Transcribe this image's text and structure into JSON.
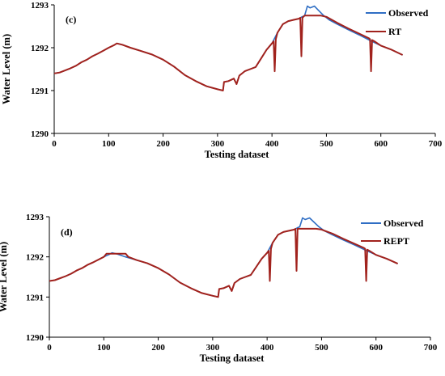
{
  "colors": {
    "observed": "#2f6ec4",
    "model": "#a1221d",
    "axis": "#000000"
  },
  "chart_data": [
    {
      "type": "line",
      "panel_label": "(c)",
      "xlabel": "Testing dataset",
      "ylabel": "Water Level (m)",
      "xlim": [
        0,
        700
      ],
      "ylim": [
        1290,
        1293
      ],
      "xticks": [
        0,
        100,
        200,
        300,
        400,
        500,
        600,
        700
      ],
      "yticks": [
        1290,
        1291,
        1292,
        1293
      ],
      "grid": false,
      "legend_position": "top-right",
      "series": [
        {
          "name": "Observed",
          "color": "#2f6ec4",
          "x": [
            0,
            10,
            20,
            30,
            40,
            50,
            60,
            70,
            80,
            90,
            100,
            110,
            115,
            125,
            140,
            160,
            180,
            200,
            220,
            240,
            260,
            280,
            300,
            310,
            312,
            320,
            330,
            335,
            340,
            350,
            360,
            370,
            380,
            390,
            400,
            410,
            420,
            430,
            440,
            450,
            455,
            460,
            465,
            470,
            478,
            485,
            495,
            505,
            520,
            540,
            560,
            580,
            600,
            620,
            640
          ],
          "y": [
            1291.4,
            1291.42,
            1291.47,
            1291.52,
            1291.58,
            1291.66,
            1291.72,
            1291.8,
            1291.86,
            1291.93,
            1292.0,
            1292.06,
            1292.1,
            1292.07,
            1292.0,
            1291.92,
            1291.84,
            1291.72,
            1291.56,
            1291.36,
            1291.22,
            1291.1,
            1291.03,
            1291.0,
            1291.2,
            1291.22,
            1291.28,
            1291.15,
            1291.35,
            1291.45,
            1291.5,
            1291.55,
            1291.75,
            1291.95,
            1292.1,
            1292.35,
            1292.55,
            1292.62,
            1292.65,
            1292.68,
            1292.72,
            1292.75,
            1292.97,
            1292.93,
            1292.97,
            1292.88,
            1292.75,
            1292.65,
            1292.55,
            1292.42,
            1292.3,
            1292.17,
            1292.05,
            1291.95,
            1291.83
          ]
        },
        {
          "name": "RT",
          "color": "#a1221d",
          "x": [
            0,
            10,
            20,
            30,
            40,
            50,
            60,
            70,
            80,
            90,
            100,
            110,
            115,
            125,
            140,
            160,
            180,
            200,
            220,
            240,
            260,
            280,
            300,
            310,
            312,
            320,
            330,
            335,
            340,
            350,
            360,
            370,
            380,
            390,
            400,
            403,
            405,
            407,
            410,
            420,
            430,
            440,
            450,
            452,
            454,
            456,
            460,
            470,
            480,
            490,
            500,
            520,
            540,
            560,
            578,
            580,
            582,
            584,
            588,
            600,
            620,
            640
          ],
          "y": [
            1291.4,
            1291.42,
            1291.47,
            1291.52,
            1291.58,
            1291.66,
            1291.72,
            1291.8,
            1291.86,
            1291.93,
            1292.0,
            1292.06,
            1292.1,
            1292.07,
            1292.0,
            1291.92,
            1291.84,
            1291.72,
            1291.56,
            1291.36,
            1291.22,
            1291.1,
            1291.03,
            1291.0,
            1291.2,
            1291.22,
            1291.28,
            1291.15,
            1291.35,
            1291.45,
            1291.5,
            1291.55,
            1291.75,
            1291.95,
            1292.1,
            1292.15,
            1291.45,
            1292.2,
            1292.35,
            1292.55,
            1292.62,
            1292.65,
            1292.68,
            1292.7,
            1291.8,
            1292.7,
            1292.75,
            1292.75,
            1292.75,
            1292.75,
            1292.72,
            1292.58,
            1292.45,
            1292.33,
            1292.22,
            1292.2,
            1291.45,
            1292.18,
            1292.15,
            1292.05,
            1291.95,
            1291.83
          ]
        }
      ]
    },
    {
      "type": "line",
      "panel_label": "(d)",
      "xlabel": "Testing dataset",
      "ylabel": "Water Level (m)",
      "xlim": [
        0,
        700
      ],
      "ylim": [
        1290,
        1293
      ],
      "xticks": [
        0,
        100,
        200,
        300,
        400,
        500,
        600,
        700
      ],
      "yticks": [
        1290,
        1291,
        1292,
        1293
      ],
      "grid": false,
      "legend_position": "top-right",
      "series": [
        {
          "name": "Observed",
          "color": "#2f6ec4",
          "x": [
            0,
            10,
            20,
            30,
            40,
            50,
            60,
            70,
            80,
            90,
            100,
            110,
            115,
            125,
            140,
            160,
            180,
            200,
            220,
            240,
            260,
            280,
            300,
            310,
            312,
            320,
            330,
            335,
            340,
            350,
            360,
            370,
            380,
            390,
            400,
            410,
            420,
            430,
            440,
            450,
            455,
            460,
            465,
            470,
            478,
            485,
            495,
            505,
            520,
            540,
            560,
            580,
            600,
            620,
            640
          ],
          "y": [
            1291.4,
            1291.42,
            1291.47,
            1291.52,
            1291.58,
            1291.66,
            1291.72,
            1291.8,
            1291.86,
            1291.93,
            1292.0,
            1292.06,
            1292.1,
            1292.07,
            1292.0,
            1291.92,
            1291.84,
            1291.72,
            1291.56,
            1291.36,
            1291.22,
            1291.1,
            1291.03,
            1291.0,
            1291.2,
            1291.22,
            1291.28,
            1291.15,
            1291.35,
            1291.45,
            1291.5,
            1291.55,
            1291.75,
            1291.95,
            1292.1,
            1292.35,
            1292.55,
            1292.62,
            1292.65,
            1292.68,
            1292.72,
            1292.75,
            1292.97,
            1292.93,
            1292.97,
            1292.88,
            1292.75,
            1292.65,
            1292.55,
            1292.42,
            1292.3,
            1292.17,
            1292.05,
            1291.95,
            1291.83
          ]
        },
        {
          "name": "REPT",
          "color": "#a1221d",
          "x": [
            0,
            10,
            20,
            30,
            40,
            50,
            60,
            70,
            80,
            90,
            100,
            105,
            140,
            145,
            160,
            180,
            200,
            220,
            240,
            260,
            280,
            300,
            310,
            312,
            320,
            330,
            335,
            340,
            350,
            360,
            370,
            380,
            390,
            400,
            403,
            405,
            407,
            410,
            420,
            430,
            440,
            450,
            452,
            454,
            456,
            460,
            470,
            480,
            490,
            500,
            520,
            540,
            560,
            578,
            580,
            582,
            584,
            588,
            600,
            620,
            640
          ],
          "y": [
            1291.4,
            1291.42,
            1291.47,
            1291.52,
            1291.58,
            1291.66,
            1291.72,
            1291.8,
            1291.86,
            1291.93,
            1292.0,
            1292.08,
            1292.08,
            1292.0,
            1291.92,
            1291.84,
            1291.72,
            1291.56,
            1291.36,
            1291.22,
            1291.1,
            1291.03,
            1291.0,
            1291.2,
            1291.22,
            1291.28,
            1291.15,
            1291.35,
            1291.45,
            1291.5,
            1291.55,
            1291.75,
            1291.95,
            1292.1,
            1292.15,
            1291.4,
            1292.2,
            1292.35,
            1292.55,
            1292.62,
            1292.65,
            1292.68,
            1292.7,
            1291.65,
            1292.7,
            1292.7,
            1292.7,
            1292.7,
            1292.7,
            1292.68,
            1292.58,
            1292.45,
            1292.33,
            1292.22,
            1292.2,
            1291.4,
            1292.18,
            1292.15,
            1292.05,
            1291.95,
            1291.83
          ]
        }
      ]
    }
  ]
}
